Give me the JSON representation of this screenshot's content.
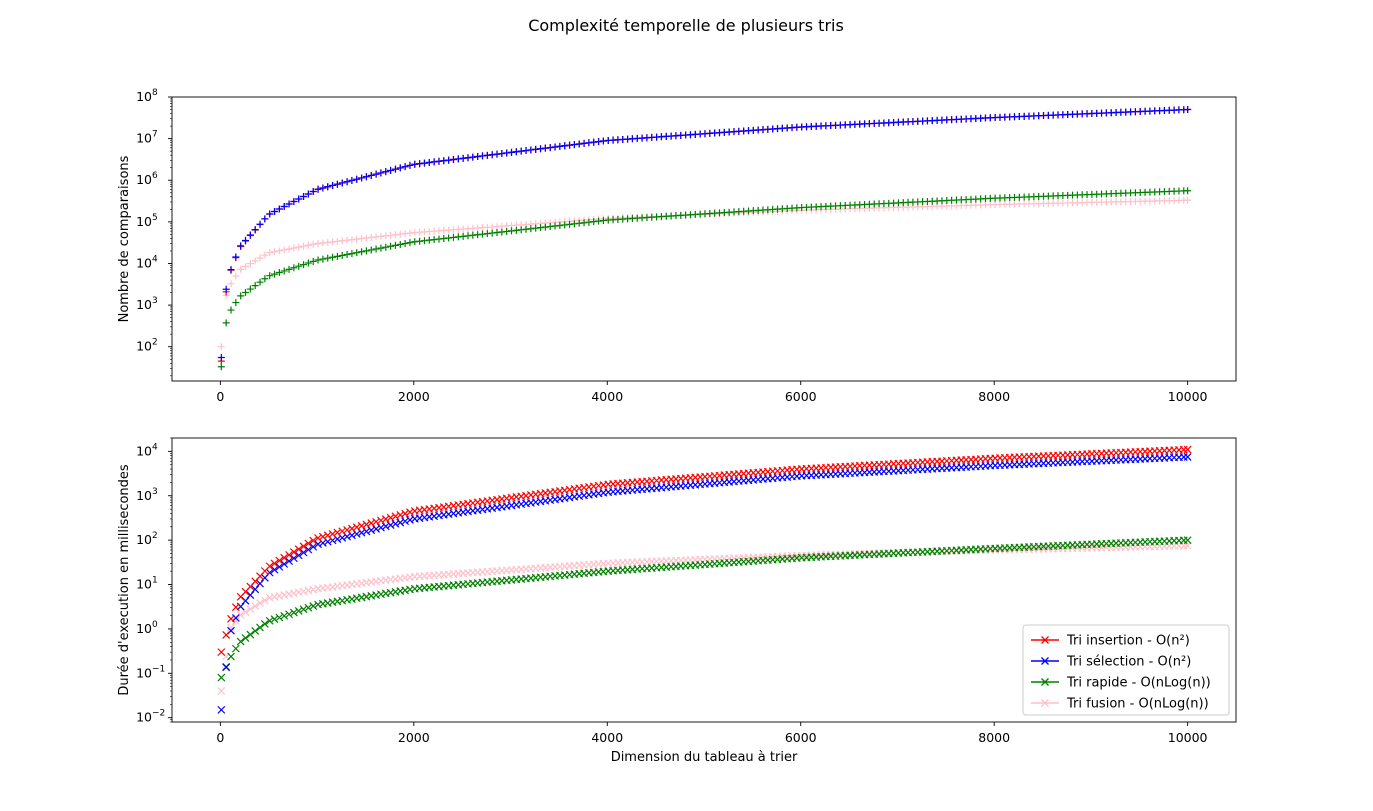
{
  "figure": {
    "title": "Complexité temporelle de plusieurs tris"
  },
  "colors": {
    "insertion": "#ff0000",
    "selection": "#0000ff",
    "rapide": "#008000",
    "fusion": "#ffc0cb"
  },
  "chart_data": [
    {
      "type": "scatter",
      "name": "comparisons",
      "xlabel": "",
      "ylabel": "Nombre de comparaisons",
      "xlim": [
        -500,
        10500
      ],
      "ylim": [
        15,
        100000000
      ],
      "yscale": "log",
      "xticks": [
        0,
        2000,
        4000,
        6000,
        8000,
        10000
      ],
      "yticks": [
        {
          "base": "10",
          "exp": "2"
        },
        {
          "base": "10",
          "exp": "3"
        },
        {
          "base": "10",
          "exp": "4"
        },
        {
          "base": "10",
          "exp": "5"
        },
        {
          "base": "10",
          "exp": "6"
        },
        {
          "base": "10",
          "exp": "7"
        },
        {
          "base": "10",
          "exp": "8"
        }
      ],
      "grid": false,
      "marker": "+",
      "series": [
        {
          "key": "insertion",
          "x": [
            10,
            50,
            100,
            200,
            500,
            1000,
            2000,
            4000,
            6000,
            8000,
            10000
          ],
          "y": [
            45,
            1600,
            6000,
            24000,
            150000,
            600000,
            2400000,
            9000000,
            19000000,
            32000000,
            50000000
          ]
        },
        {
          "key": "selection",
          "x": [
            10,
            50,
            100,
            200,
            500,
            1000,
            2000,
            4000,
            6000,
            8000,
            10000
          ],
          "y": [
            55,
            1900,
            6200,
            25000,
            150000,
            600000,
            2400000,
            9000000,
            19000000,
            32000000,
            50000000
          ]
        },
        {
          "key": "rapide",
          "x": [
            10,
            50,
            100,
            200,
            500,
            1000,
            2000,
            4000,
            6000,
            8000,
            10000
          ],
          "y": [
            33,
            320,
            700,
            1600,
            5000,
            12000,
            33000,
            110000,
            220000,
            370000,
            560000
          ]
        },
        {
          "key": "fusion",
          "x": [
            10,
            50,
            100,
            200,
            500,
            1000,
            2000,
            4000,
            6000,
            8000,
            10000
          ],
          "y": [
            100,
            1500,
            3000,
            7000,
            18000,
            30000,
            55000,
            120000,
            190000,
            260000,
            330000
          ]
        }
      ]
    },
    {
      "type": "scatter",
      "name": "durations",
      "xlabel": "Dimension du tableau à trier",
      "ylabel": "Durée d'execution en millisecondes",
      "xlim": [
        -500,
        10500
      ],
      "ylim": [
        0.008,
        20000
      ],
      "yscale": "log",
      "xticks": [
        0,
        2000,
        4000,
        6000,
        8000,
        10000
      ],
      "yticks": [
        {
          "base": "10",
          "exp": "−2"
        },
        {
          "base": "10",
          "exp": "−1"
        },
        {
          "base": "10",
          "exp": "0"
        },
        {
          "base": "10",
          "exp": "1"
        },
        {
          "base": "10",
          "exp": "2"
        },
        {
          "base": "10",
          "exp": "3"
        },
        {
          "base": "10",
          "exp": "4"
        }
      ],
      "grid": false,
      "marker": "x",
      "legend_position": "lower-right",
      "series": [
        {
          "key": "insertion",
          "name": "Tri insertion - O(n²)",
          "x": [
            10,
            100,
            200,
            500,
            1000,
            2000,
            4000,
            6000,
            8000,
            10000
          ],
          "y": [
            0.3,
            1.5,
            5,
            25,
            110,
            450,
            1800,
            4000,
            7000,
            11000
          ]
        },
        {
          "key": "selection",
          "name": "Tri sélection - O(n²)",
          "x": [
            10,
            100,
            200,
            500,
            1000,
            2000,
            4000,
            6000,
            8000,
            10000
          ],
          "y": [
            0.015,
            0.8,
            3,
            18,
            80,
            300,
            1200,
            2800,
            4800,
            7500
          ]
        },
        {
          "key": "rapide",
          "name": "Tri rapide - O(nLog(n))",
          "x": [
            10,
            100,
            200,
            500,
            1000,
            2000,
            4000,
            6000,
            8000,
            10000
          ],
          "y": [
            0.08,
            0.22,
            0.5,
            1.5,
            3.5,
            8,
            20,
            40,
            65,
            100
          ]
        },
        {
          "key": "fusion",
          "name": "Tri fusion - O(nLog(n))",
          "x": [
            10,
            100,
            200,
            500,
            1000,
            2000,
            4000,
            6000,
            8000,
            10000
          ],
          "y": [
            0.04,
            1,
            2,
            5,
            8,
            15,
            30,
            45,
            60,
            75
          ]
        }
      ]
    }
  ]
}
